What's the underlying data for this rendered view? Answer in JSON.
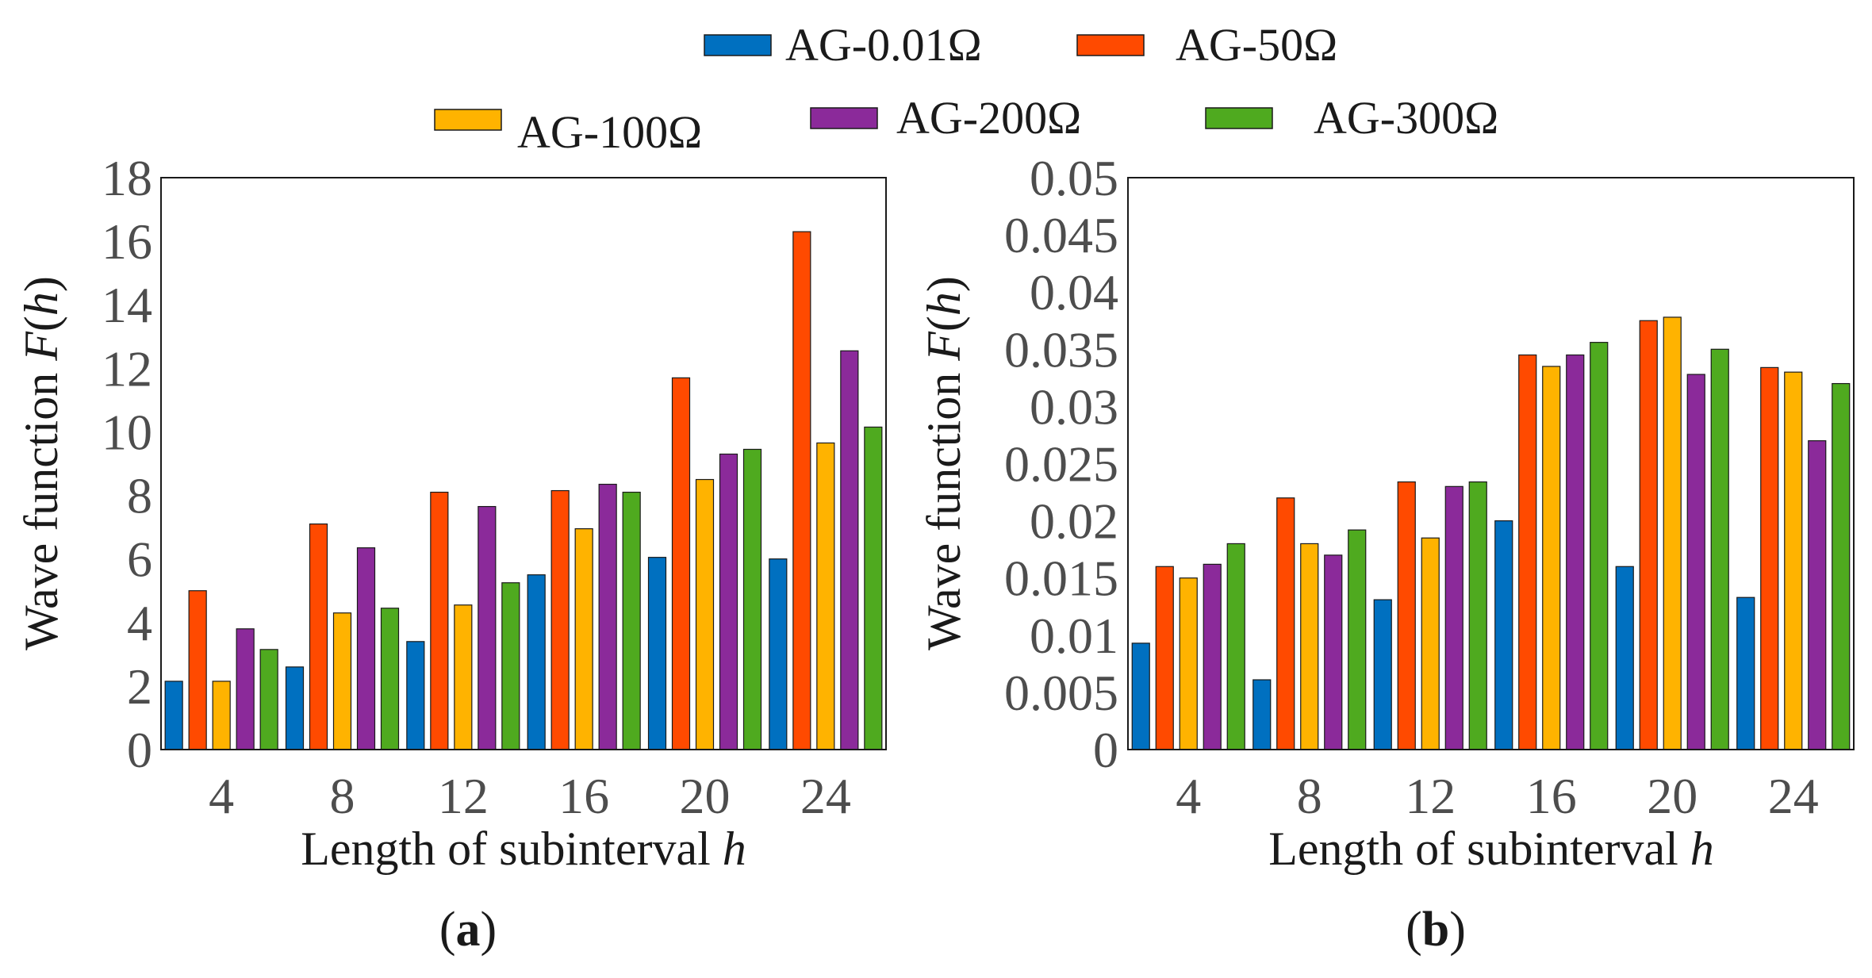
{
  "legend": [
    {
      "name": "AG-0.01Ω",
      "color": "#0070C0"
    },
    {
      "name": "AG-50Ω",
      "color": "#FF4A00"
    },
    {
      "name": "AG-100Ω",
      "color": "#FFB300"
    },
    {
      "name": "AG-200Ω",
      "color": "#8B2A9A"
    },
    {
      "name": "AG-300Ω",
      "color": "#4FAA1F"
    }
  ],
  "chart_data": [
    {
      "type": "bar",
      "panel_label": "(a)",
      "panel_letter": "a",
      "xlabel": "Length of subinterval",
      "xlabel_var": "h",
      "ylabel": "Wave function",
      "ylabel_fn": "F",
      "ylabel_var": "h",
      "categories": [
        "4",
        "8",
        "12",
        "16",
        "20",
        "24"
      ],
      "ylim": [
        0,
        18
      ],
      "yticks": [
        "0",
        "2",
        "4",
        "6",
        "8",
        "10",
        "12",
        "14",
        "16",
        "18"
      ],
      "ytick_values": [
        0,
        2,
        4,
        6,
        8,
        10,
        12,
        14,
        16,
        18
      ],
      "series": [
        {
          "name": "AG-0.01Ω",
          "values": [
            2.15,
            2.6,
            3.4,
            5.5,
            6.05,
            6.0
          ]
        },
        {
          "name": "AG-50Ω",
          "values": [
            5.0,
            7.1,
            8.1,
            8.15,
            11.7,
            16.3
          ]
        },
        {
          "name": "AG-100Ω",
          "values": [
            2.15,
            4.3,
            4.55,
            6.95,
            8.5,
            9.65
          ]
        },
        {
          "name": "AG-200Ω",
          "values": [
            3.8,
            6.35,
            7.65,
            8.35,
            9.3,
            12.55
          ]
        },
        {
          "name": "AG-300Ω",
          "values": [
            3.15,
            4.45,
            5.25,
            8.1,
            9.45,
            10.15
          ]
        }
      ]
    },
    {
      "type": "bar",
      "panel_label": "(b)",
      "panel_letter": "b",
      "xlabel": "Length of subinterval",
      "xlabel_var": "h",
      "ylabel": "Wave function",
      "ylabel_fn": "F",
      "ylabel_var": "h",
      "categories": [
        "4",
        "8",
        "12",
        "16",
        "20",
        "24"
      ],
      "ylim": [
        0,
        0.05
      ],
      "yticks": [
        "0",
        "0.005",
        "0.01",
        "0.015",
        "0.02",
        "0.025",
        "0.03",
        "0.035",
        "0.04",
        "0.045",
        "0.05"
      ],
      "ytick_values": [
        0,
        0.005,
        0.01,
        0.015,
        0.02,
        0.025,
        0.03,
        0.035,
        0.04,
        0.045,
        0.05
      ],
      "series": [
        {
          "name": "AG-0.01Ω",
          "values": [
            0.0093,
            0.0061,
            0.0131,
            0.02,
            0.016,
            0.0133
          ]
        },
        {
          "name": "AG-50Ω",
          "values": [
            0.016,
            0.022,
            0.0234,
            0.0345,
            0.0375,
            0.0334
          ]
        },
        {
          "name": "AG-100Ω",
          "values": [
            0.015,
            0.018,
            0.0185,
            0.0335,
            0.0378,
            0.033
          ]
        },
        {
          "name": "AG-200Ω",
          "values": [
            0.0162,
            0.017,
            0.023,
            0.0345,
            0.0328,
            0.027
          ]
        },
        {
          "name": "AG-300Ω",
          "values": [
            0.018,
            0.0192,
            0.0234,
            0.0356,
            0.035,
            0.032
          ]
        }
      ]
    }
  ]
}
